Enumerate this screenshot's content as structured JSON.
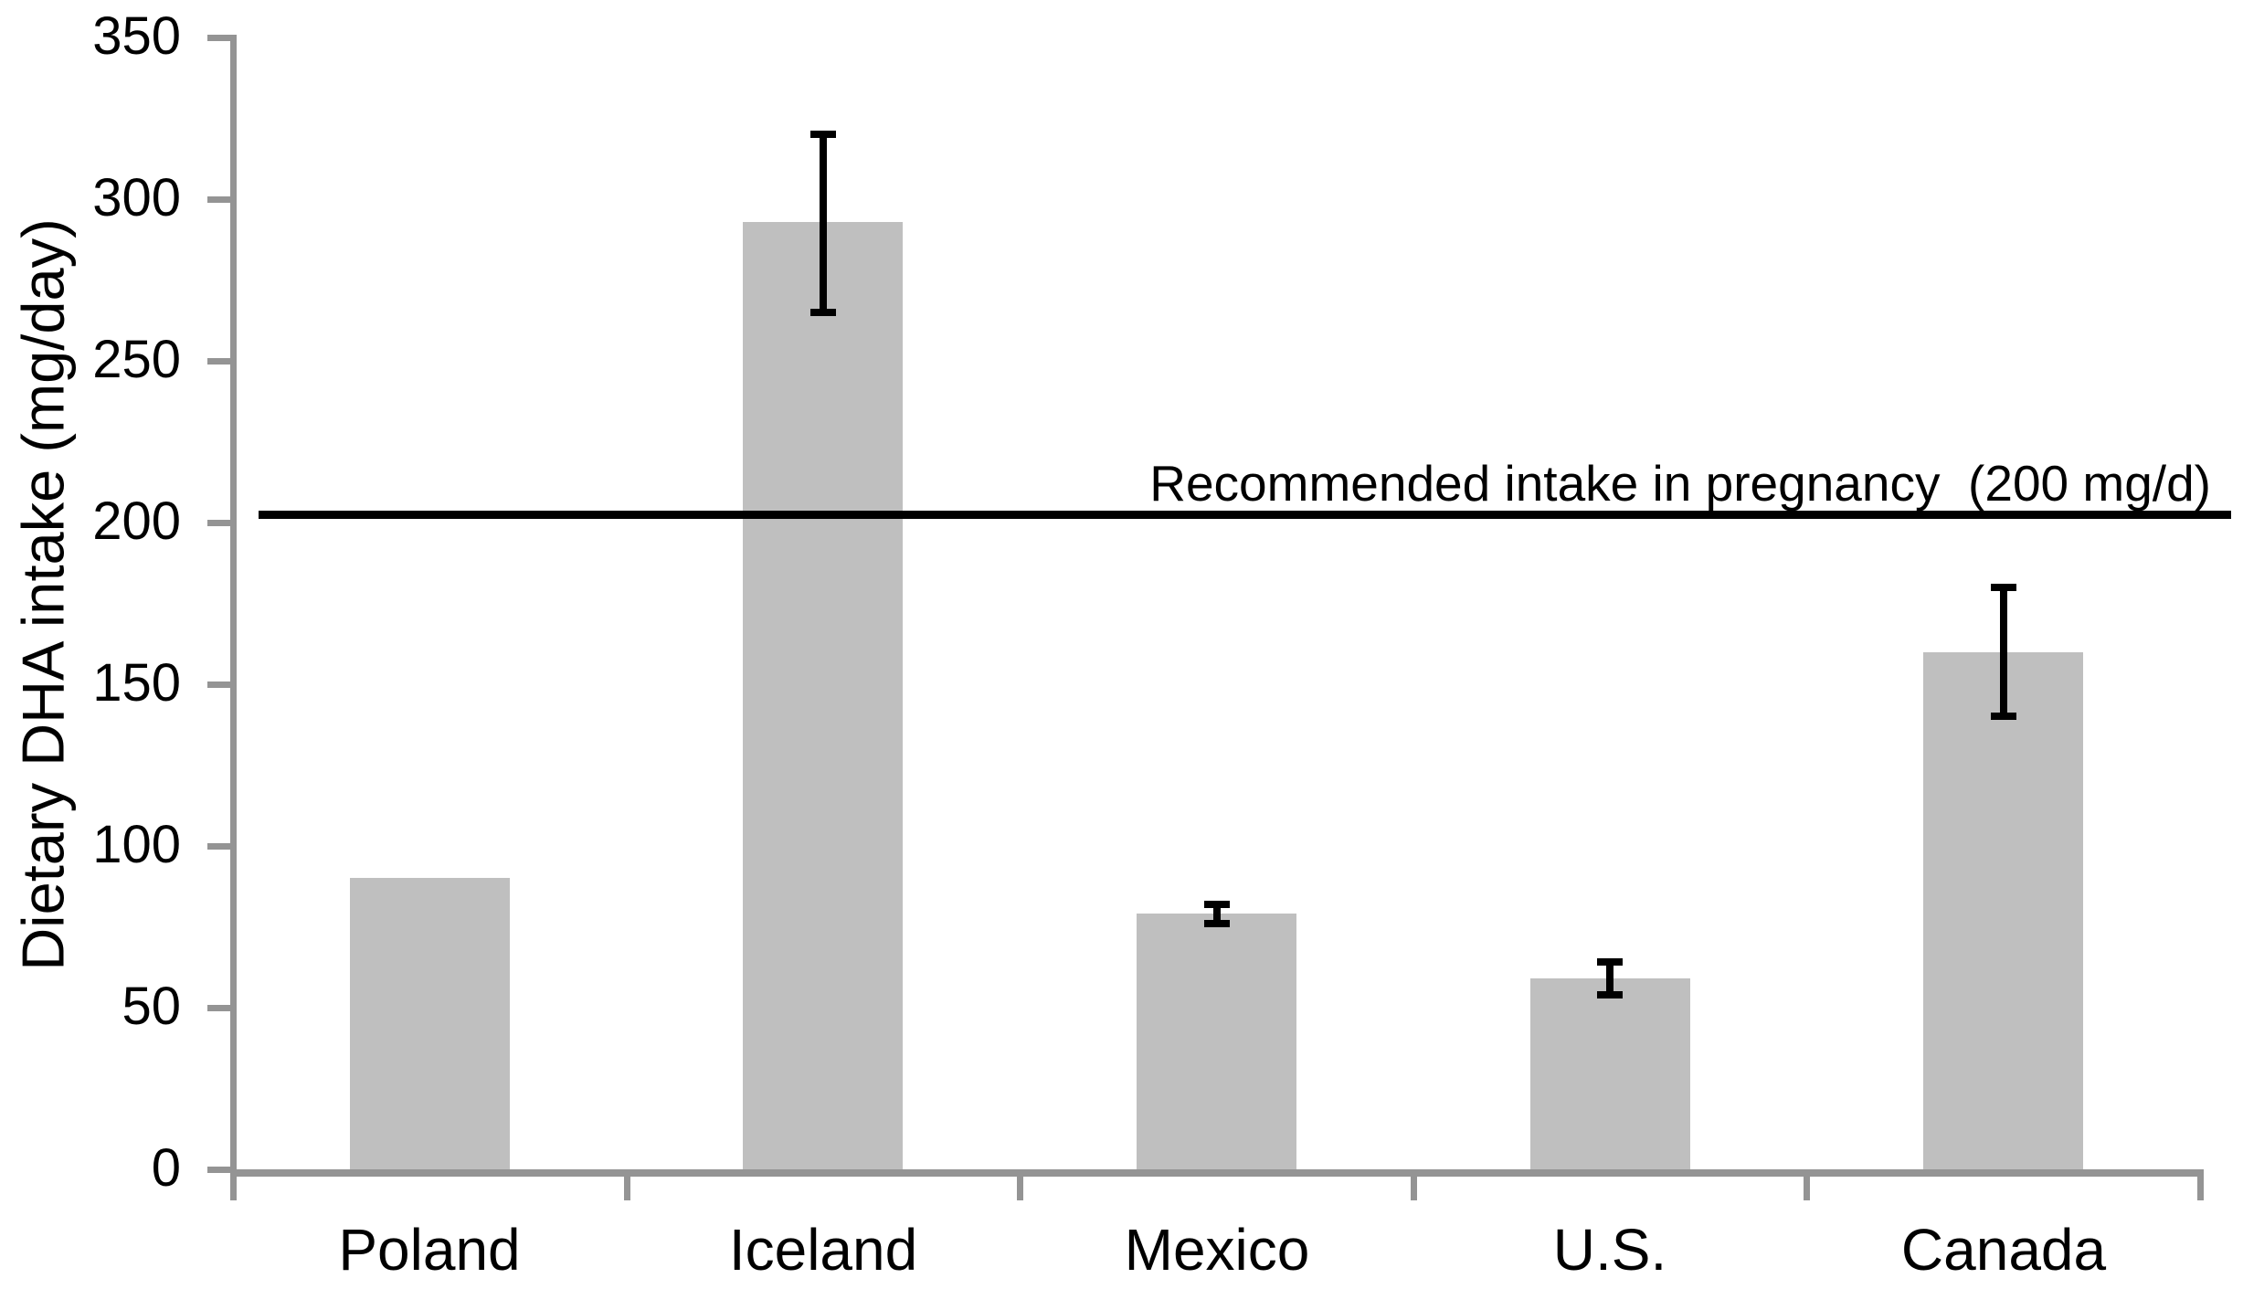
{
  "chart_data": {
    "type": "bar",
    "title": "",
    "xlabel": "",
    "ylabel": "Dietary DHA intake (mg/day)",
    "categories": [
      "Poland",
      "Iceland",
      "Mexico",
      "U.S.",
      "Canada"
    ],
    "values": [
      90,
      293,
      79,
      59,
      160
    ],
    "error_bars": [
      null,
      {
        "low": 265,
        "high": 320
      },
      {
        "low": 76,
        "high": 82
      },
      {
        "low": 54,
        "high": 64
      },
      {
        "low": 140,
        "high": 180
      }
    ],
    "ylim": [
      0,
      350
    ],
    "yticks": [
      0,
      50,
      100,
      150,
      200,
      250,
      300,
      350
    ],
    "grid": false,
    "legend": null,
    "reference_line": {
      "value": 200,
      "plotted_value": 202.5,
      "label": "Recommended intake in pregnancy  (200 mg/d)"
    },
    "colors": {
      "bar_fill": "#bfbfbf",
      "axis": "#949494",
      "error_bar": "#000000",
      "reference_line": "#000000",
      "text": "#000000"
    }
  }
}
